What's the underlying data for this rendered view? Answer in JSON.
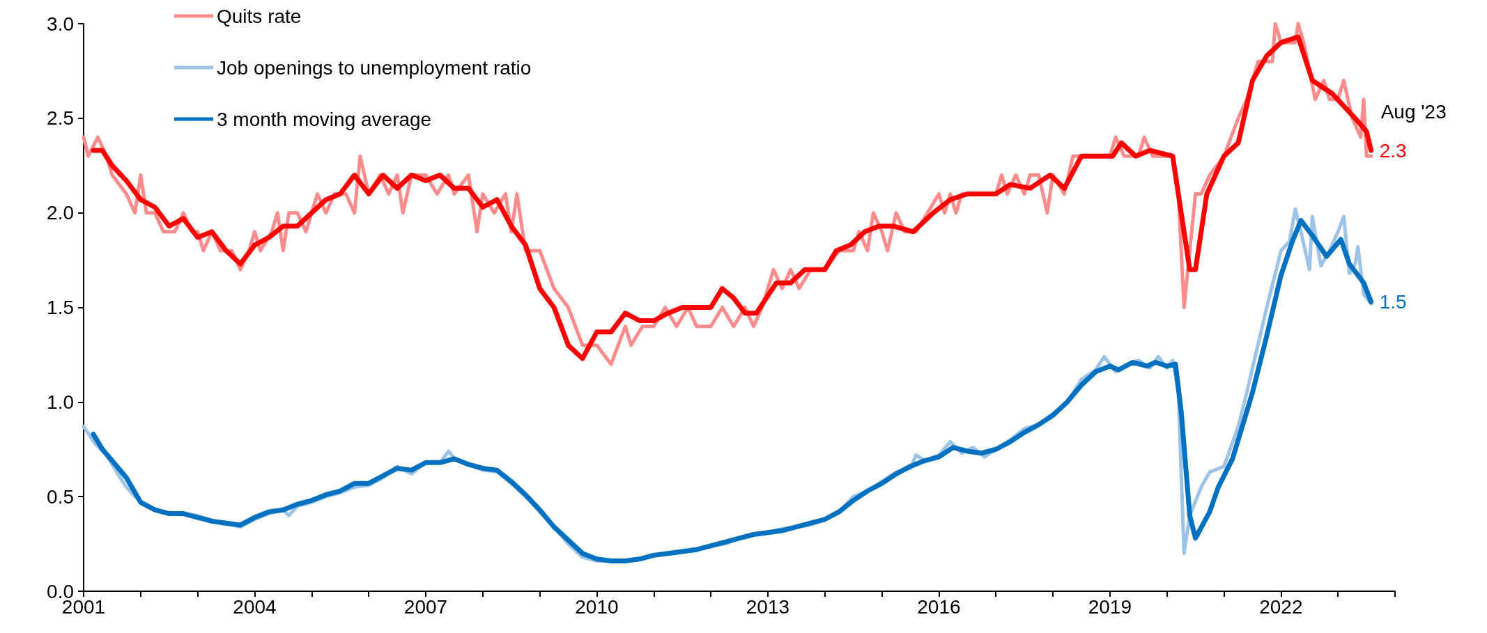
{
  "chart_data": {
    "type": "line",
    "xlim": [
      2001,
      2024
    ],
    "xticks": [
      2001,
      {
        "value": 2002,
        "label": null
      },
      {
        "value": 2003,
        "label": null
      },
      2004,
      {
        "value": 2005,
        "label": null
      },
      {
        "value": 2006,
        "label": null
      },
      2007,
      {
        "value": 2008,
        "label": null
      },
      {
        "value": 2009,
        "label": null
      },
      2010,
      {
        "value": 2011,
        "label": null
      },
      {
        "value": 2012,
        "label": null
      },
      2013,
      {
        "value": 2014,
        "label": null
      },
      {
        "value": 2015,
        "label": null
      },
      2016,
      {
        "value": 2017,
        "label": null
      },
      {
        "value": 2018,
        "label": null
      },
      2019,
      {
        "value": 2020,
        "label": null
      },
      {
        "value": 2021,
        "label": null
      },
      2022,
      {
        "value": 2023,
        "label": null
      },
      {
        "value": 2024,
        "label": null
      }
    ],
    "ylim": [
      0,
      3
    ],
    "yticks": [
      {
        "value": 0,
        "label": "0.0"
      },
      0.5,
      {
        "value": 1,
        "label": "1.0"
      },
      1.5,
      {
        "value": 2,
        "label": "2.0"
      },
      2.5,
      {
        "value": 3,
        "label": "3.0"
      }
    ],
    "grid": false,
    "legend": "top left",
    "marker": "none",
    "line_style": "solid",
    "annotations": [
      "Aug '23"
    ],
    "series": [
      {
        "name": "Quits rate",
        "color": "#ff8c8c",
        "x": [
          2001.0,
          2001.08,
          2001.25,
          2001.4,
          2001.5,
          2001.75,
          2001.9,
          2002.0,
          2002.1,
          2002.25,
          2002.4,
          2002.6,
          2002.75,
          2002.9,
          2003.0,
          2003.1,
          2003.25,
          2003.4,
          2003.6,
          2003.75,
          2003.9,
          2004.0,
          2004.1,
          2004.3,
          2004.4,
          2004.5,
          2004.6,
          2004.75,
          2004.9,
          2005.1,
          2005.25,
          2005.4,
          2005.6,
          2005.75,
          2005.85,
          2006.0,
          2006.2,
          2006.35,
          2006.5,
          2006.6,
          2006.75,
          2007.0,
          2007.2,
          2007.4,
          2007.5,
          2007.75,
          2007.9,
          2008.0,
          2008.2,
          2008.4,
          2008.5,
          2008.6,
          2008.75,
          2009.0,
          2009.25,
          2009.5,
          2009.75,
          2010.0,
          2010.25,
          2010.5,
          2010.6,
          2010.8,
          2011.0,
          2011.2,
          2011.4,
          2011.6,
          2011.75,
          2012.0,
          2012.2,
          2012.4,
          2012.6,
          2012.75,
          2012.9,
          2013.1,
          2013.25,
          2013.4,
          2013.55,
          2013.75,
          2014.0,
          2014.25,
          2014.5,
          2014.6,
          2014.75,
          2014.85,
          2015.0,
          2015.1,
          2015.25,
          2015.4,
          2015.6,
          2015.8,
          2016.0,
          2016.1,
          2016.2,
          2016.3,
          2016.4,
          2017.0,
          2017.1,
          2017.2,
          2017.35,
          2017.5,
          2017.6,
          2017.75,
          2017.9,
          2018.0,
          2018.2,
          2018.35,
          2018.5,
          2019.0,
          2019.1,
          2019.25,
          2019.5,
          2019.6,
          2019.75,
          2020.1,
          2020.2,
          2020.3,
          2020.4,
          2020.5,
          2020.6,
          2020.75,
          2021.0,
          2021.25,
          2021.4,
          2021.5,
          2021.6,
          2021.85,
          2021.9,
          2022.0,
          2022.25,
          2022.3,
          2022.4,
          2022.6,
          2022.75,
          2022.85,
          2023.0,
          2023.1,
          2023.25,
          2023.4,
          2023.45,
          2023.5,
          2023.58
        ],
        "values": [
          2.4,
          2.3,
          2.4,
          2.3,
          2.2,
          2.1,
          2.0,
          2.2,
          2.0,
          2.0,
          1.9,
          1.9,
          2.0,
          1.9,
          1.9,
          1.8,
          1.9,
          1.8,
          1.8,
          1.7,
          1.8,
          1.9,
          1.8,
          1.9,
          2.0,
          1.8,
          2.0,
          2.0,
          1.9,
          2.1,
          2.0,
          2.1,
          2.1,
          2.0,
          2.3,
          2.1,
          2.2,
          2.1,
          2.2,
          2.0,
          2.2,
          2.2,
          2.1,
          2.2,
          2.1,
          2.2,
          1.9,
          2.1,
          2.0,
          2.1,
          1.9,
          2.1,
          1.8,
          1.8,
          1.6,
          1.5,
          1.3,
          1.3,
          1.2,
          1.4,
          1.3,
          1.4,
          1.4,
          1.5,
          1.4,
          1.5,
          1.4,
          1.4,
          1.5,
          1.4,
          1.5,
          1.4,
          1.5,
          1.7,
          1.6,
          1.7,
          1.6,
          1.7,
          1.7,
          1.8,
          1.8,
          1.9,
          1.8,
          2.0,
          1.9,
          1.8,
          2.0,
          1.9,
          1.9,
          2.0,
          2.1,
          2.0,
          2.1,
          2.0,
          2.1,
          2.1,
          2.2,
          2.1,
          2.2,
          2.1,
          2.2,
          2.2,
          2.0,
          2.2,
          2.1,
          2.3,
          2.3,
          2.3,
          2.4,
          2.3,
          2.3,
          2.4,
          2.3,
          2.3,
          2.1,
          1.5,
          1.8,
          2.1,
          2.1,
          2.2,
          2.3,
          2.5,
          2.6,
          2.7,
          2.8,
          2.8,
          3.0,
          2.9,
          2.9,
          3.0,
          2.9,
          2.6,
          2.7,
          2.6,
          2.6,
          2.7,
          2.5,
          2.4,
          2.6,
          2.3,
          2.3
        ]
      },
      {
        "color": "#ff0000",
        "x": [
          2001.17,
          2001.33,
          2001.5,
          2001.75,
          2002.0,
          2002.25,
          2002.5,
          2002.75,
          2003.0,
          2003.25,
          2003.5,
          2003.75,
          2004.0,
          2004.25,
          2004.5,
          2004.75,
          2005.0,
          2005.25,
          2005.5,
          2005.75,
          2006.0,
          2006.25,
          2006.5,
          2006.75,
          2007.0,
          2007.25,
          2007.5,
          2007.75,
          2008.0,
          2008.25,
          2008.5,
          2008.75,
          2009.0,
          2009.25,
          2009.5,
          2009.75,
          2010.0,
          2010.25,
          2010.5,
          2010.75,
          2011.0,
          2011.25,
          2011.5,
          2011.75,
          2012.0,
          2012.2,
          2012.4,
          2012.6,
          2012.8,
          2013.15,
          2013.4,
          2013.65,
          2014.0,
          2014.2,
          2014.45,
          2014.7,
          2014.95,
          2015.2,
          2015.55,
          2015.9,
          2016.2,
          2016.5,
          2017.0,
          2017.25,
          2017.6,
          2017.95,
          2018.2,
          2018.5,
          2019.05,
          2019.2,
          2019.45,
          2019.7,
          2020.1,
          2020.25,
          2020.4,
          2020.5,
          2020.7,
          2021.0,
          2021.25,
          2021.5,
          2021.75,
          2022.0,
          2022.3,
          2022.55,
          2022.9,
          2023.3,
          2023.5,
          2023.58
        ],
        "values": [
          2.33,
          2.33,
          2.25,
          2.17,
          2.07,
          2.03,
          1.93,
          1.97,
          1.87,
          1.9,
          1.8,
          1.73,
          1.83,
          1.87,
          1.93,
          1.93,
          2.0,
          2.07,
          2.1,
          2.2,
          2.1,
          2.2,
          2.13,
          2.2,
          2.17,
          2.2,
          2.13,
          2.13,
          2.03,
          2.07,
          1.93,
          1.83,
          1.6,
          1.5,
          1.3,
          1.23,
          1.37,
          1.37,
          1.47,
          1.43,
          1.43,
          1.47,
          1.5,
          1.5,
          1.5,
          1.6,
          1.55,
          1.47,
          1.47,
          1.63,
          1.63,
          1.7,
          1.7,
          1.8,
          1.83,
          1.9,
          1.93,
          1.93,
          1.9,
          2.0,
          2.07,
          2.1,
          2.1,
          2.15,
          2.13,
          2.2,
          2.13,
          2.3,
          2.3,
          2.37,
          2.3,
          2.33,
          2.3,
          2.0,
          1.7,
          1.7,
          2.1,
          2.3,
          2.37,
          2.7,
          2.83,
          2.9,
          2.93,
          2.7,
          2.63,
          2.5,
          2.43,
          2.33
        ],
        "value_labels": [
          null,
          null,
          null,
          null,
          null,
          null,
          null,
          null,
          null,
          null,
          null,
          null,
          null,
          null,
          null,
          null,
          null,
          null,
          null,
          null,
          null,
          null,
          null,
          null,
          null,
          null,
          null,
          null,
          null,
          null,
          null,
          null,
          null,
          null,
          null,
          null,
          null,
          null,
          null,
          null,
          null,
          null,
          null,
          null,
          null,
          null,
          null,
          null,
          null,
          null,
          null,
          null,
          null,
          null,
          null,
          null,
          null,
          null,
          null,
          null,
          null,
          null,
          null,
          null,
          null,
          null,
          null,
          null,
          null,
          null,
          null,
          null,
          null,
          null,
          null,
          null,
          null,
          null,
          null,
          null,
          null,
          null,
          null,
          null,
          null,
          null,
          null,
          "2.3"
        ]
      },
      {
        "name": "Job openings to unemployment ratio",
        "color": "#9dc3e6",
        "x": [
          2001.0,
          2001.2,
          2001.4,
          2001.6,
          2001.75,
          2001.9,
          2002.1,
          2002.3,
          2002.5,
          2002.75,
          2003.0,
          2003.2,
          2003.4,
          2003.6,
          2003.75,
          2004.0,
          2004.25,
          2004.5,
          2004.6,
          2004.75,
          2005.0,
          2005.25,
          2005.5,
          2005.75,
          2006.0,
          2006.25,
          2006.5,
          2006.75,
          2007.0,
          2007.25,
          2007.4,
          2007.5,
          2007.75,
          2008.0,
          2008.25,
          2008.5,
          2008.75,
          2009.0,
          2009.25,
          2009.5,
          2009.75,
          2010.0,
          2010.25,
          2010.5,
          2010.75,
          2011.0,
          2011.25,
          2011.5,
          2011.75,
          2012.0,
          2012.25,
          2012.5,
          2012.75,
          2013.0,
          2013.25,
          2013.5,
          2013.75,
          2014.0,
          2014.25,
          2014.5,
          2014.75,
          2015.0,
          2015.25,
          2015.5,
          2015.6,
          2015.75,
          2016.0,
          2016.2,
          2016.4,
          2016.6,
          2016.8,
          2017.0,
          2017.25,
          2017.5,
          2017.75,
          2018.0,
          2018.25,
          2018.5,
          2018.75,
          2018.9,
          2019.1,
          2019.3,
          2019.5,
          2019.7,
          2019.85,
          2020.0,
          2020.1,
          2020.2,
          2020.3,
          2020.4,
          2020.6,
          2020.75,
          2021.0,
          2021.25,
          2021.4,
          2021.5,
          2021.75,
          2022.0,
          2022.15,
          2022.25,
          2022.35,
          2022.5,
          2022.55,
          2022.7,
          2022.85,
          2023.0,
          2023.1,
          2023.2,
          2023.3,
          2023.35,
          2023.45,
          2023.58
        ],
        "values": [
          0.87,
          0.78,
          0.72,
          0.62,
          0.55,
          0.5,
          0.45,
          0.43,
          0.41,
          0.41,
          0.4,
          0.38,
          0.36,
          0.35,
          0.34,
          0.38,
          0.41,
          0.43,
          0.4,
          0.45,
          0.47,
          0.5,
          0.52,
          0.55,
          0.56,
          0.6,
          0.66,
          0.62,
          0.68,
          0.68,
          0.74,
          0.7,
          0.67,
          0.64,
          0.63,
          0.57,
          0.5,
          0.42,
          0.34,
          0.25,
          0.18,
          0.16,
          0.16,
          0.16,
          0.17,
          0.19,
          0.2,
          0.21,
          0.22,
          0.24,
          0.25,
          0.28,
          0.3,
          0.31,
          0.33,
          0.34,
          0.35,
          0.38,
          0.42,
          0.5,
          0.53,
          0.58,
          0.63,
          0.65,
          0.72,
          0.69,
          0.72,
          0.79,
          0.73,
          0.76,
          0.71,
          0.75,
          0.8,
          0.86,
          0.88,
          0.94,
          1.0,
          1.12,
          1.17,
          1.24,
          1.16,
          1.2,
          1.22,
          1.18,
          1.24,
          1.18,
          1.22,
          1.05,
          0.2,
          0.4,
          0.55,
          0.63,
          0.66,
          0.87,
          1.05,
          1.18,
          1.5,
          1.8,
          1.85,
          2.02,
          1.9,
          1.7,
          1.98,
          1.72,
          1.8,
          1.9,
          1.98,
          1.68,
          1.73,
          1.82,
          1.57,
          1.52
        ]
      },
      {
        "name": "3 month moving average",
        "color": "#0070c0",
        "x": [
          2001.17,
          2001.33,
          2001.5,
          2001.75,
          2002.0,
          2002.25,
          2002.5,
          2002.75,
          2003.0,
          2003.25,
          2003.5,
          2003.75,
          2004.0,
          2004.25,
          2004.5,
          2004.75,
          2005.0,
          2005.25,
          2005.5,
          2005.75,
          2006.0,
          2006.25,
          2006.5,
          2006.75,
          2007.0,
          2007.25,
          2007.5,
          2007.75,
          2008.0,
          2008.25,
          2008.5,
          2008.75,
          2009.0,
          2009.25,
          2009.5,
          2009.75,
          2010.0,
          2010.25,
          2010.5,
          2010.75,
          2011.0,
          2011.25,
          2011.5,
          2011.75,
          2012.0,
          2012.25,
          2012.5,
          2012.75,
          2013.0,
          2013.25,
          2013.5,
          2013.75,
          2014.0,
          2014.25,
          2014.5,
          2014.75,
          2015.0,
          2015.25,
          2015.5,
          2015.75,
          2016.0,
          2016.25,
          2016.5,
          2016.75,
          2017.0,
          2017.25,
          2017.5,
          2017.75,
          2018.0,
          2018.25,
          2018.5,
          2018.75,
          2019.0,
          2019.15,
          2019.4,
          2019.65,
          2019.8,
          2020.0,
          2020.15,
          2020.25,
          2020.4,
          2020.5,
          2020.75,
          2020.9,
          2021.15,
          2021.5,
          2021.75,
          2022.0,
          2022.2,
          2022.35,
          2022.55,
          2022.8,
          2023.05,
          2023.2,
          2023.45,
          2023.58
        ],
        "values": [
          0.83,
          0.75,
          0.69,
          0.6,
          0.47,
          0.43,
          0.41,
          0.41,
          0.39,
          0.37,
          0.36,
          0.35,
          0.39,
          0.42,
          0.43,
          0.46,
          0.48,
          0.51,
          0.53,
          0.57,
          0.57,
          0.61,
          0.65,
          0.64,
          0.68,
          0.68,
          0.7,
          0.67,
          0.65,
          0.64,
          0.58,
          0.51,
          0.43,
          0.34,
          0.27,
          0.2,
          0.17,
          0.16,
          0.16,
          0.17,
          0.19,
          0.2,
          0.21,
          0.22,
          0.24,
          0.26,
          0.28,
          0.3,
          0.31,
          0.32,
          0.34,
          0.36,
          0.38,
          0.42,
          0.48,
          0.53,
          0.57,
          0.62,
          0.66,
          0.69,
          0.71,
          0.76,
          0.74,
          0.73,
          0.75,
          0.79,
          0.84,
          0.88,
          0.93,
          1.0,
          1.09,
          1.16,
          1.19,
          1.17,
          1.21,
          1.19,
          1.21,
          1.19,
          1.2,
          0.95,
          0.4,
          0.28,
          0.42,
          0.55,
          0.7,
          1.05,
          1.35,
          1.67,
          1.85,
          1.96,
          1.88,
          1.77,
          1.86,
          1.73,
          1.63,
          1.53
        ],
        "value_labels": [
          null,
          null,
          null,
          null,
          null,
          null,
          null,
          null,
          null,
          null,
          null,
          null,
          null,
          null,
          null,
          null,
          null,
          null,
          null,
          null,
          null,
          null,
          null,
          null,
          null,
          null,
          null,
          null,
          null,
          null,
          null,
          null,
          null,
          null,
          null,
          null,
          null,
          null,
          null,
          null,
          null,
          null,
          null,
          null,
          null,
          null,
          null,
          null,
          null,
          null,
          null,
          null,
          null,
          null,
          null,
          null,
          null,
          null,
          null,
          null,
          null,
          null,
          null,
          null,
          null,
          null,
          null,
          null,
          null,
          null,
          null,
          null,
          null,
          null,
          null,
          null,
          null,
          null,
          null,
          null,
          null,
          null,
          null,
          null,
          null,
          null,
          null,
          null,
          null,
          null,
          null,
          null,
          null,
          null,
          null,
          "1.5"
        ]
      }
    ]
  }
}
